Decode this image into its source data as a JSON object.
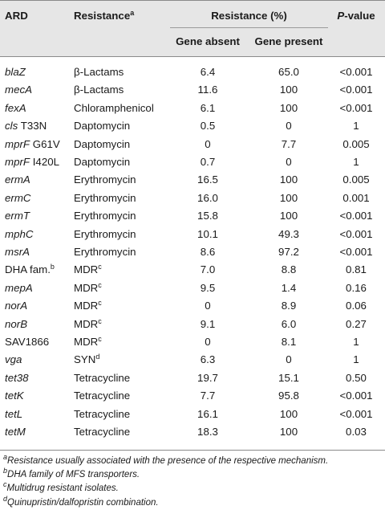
{
  "header": {
    "ard": "ARD",
    "resistance": "Resistance",
    "resistance_sup": "a",
    "resistance_pct": "Resistance (%)",
    "gene_absent": "Gene absent",
    "gene_present": "Gene present",
    "pvalue_p": "P",
    "pvalue_rest": "-value"
  },
  "rows": [
    {
      "gene": "blaZ",
      "gene_italic": true,
      "gene_extra": "",
      "gene_sup": "",
      "resistance": "β-Lactams",
      "res_sup": "",
      "absent": "6.4",
      "present": "65.0",
      "p": "<0.001"
    },
    {
      "gene": "mecA",
      "gene_italic": true,
      "gene_extra": "",
      "gene_sup": "",
      "resistance": "β-Lactams",
      "res_sup": "",
      "absent": "11.6",
      "present": "100",
      "p": "<0.001"
    },
    {
      "gene": "fexA",
      "gene_italic": true,
      "gene_extra": "",
      "gene_sup": "",
      "resistance": "Chloramphenicol",
      "res_sup": "",
      "absent": "6.1",
      "present": "100",
      "p": "<0.001"
    },
    {
      "gene": "cls",
      "gene_italic": true,
      "gene_extra": " T33N",
      "gene_sup": "",
      "resistance": "Daptomycin",
      "res_sup": "",
      "absent": "0.5",
      "present": "0",
      "p": "1"
    },
    {
      "gene": "mprF",
      "gene_italic": true,
      "gene_extra": " G61V",
      "gene_sup": "",
      "resistance": "Daptomycin",
      "res_sup": "",
      "absent": "0",
      "present": "7.7",
      "p": "0.005"
    },
    {
      "gene": "mprF",
      "gene_italic": true,
      "gene_extra": " I420L",
      "gene_sup": "",
      "resistance": "Daptomycin",
      "res_sup": "",
      "absent": "0.7",
      "present": "0",
      "p": "1"
    },
    {
      "gene": "ermA",
      "gene_italic": true,
      "gene_extra": "",
      "gene_sup": "",
      "resistance": "Erythromycin",
      "res_sup": "",
      "absent": "16.5",
      "present": "100",
      "p": "0.005"
    },
    {
      "gene": "ermC",
      "gene_italic": true,
      "gene_extra": "",
      "gene_sup": "",
      "resistance": "Erythromycin",
      "res_sup": "",
      "absent": "16.0",
      "present": "100",
      "p": "0.001"
    },
    {
      "gene": "ermT",
      "gene_italic": true,
      "gene_extra": "",
      "gene_sup": "",
      "resistance": "Erythromycin",
      "res_sup": "",
      "absent": "15.8",
      "present": "100",
      "p": "<0.001"
    },
    {
      "gene": "mphC",
      "gene_italic": true,
      "gene_extra": "",
      "gene_sup": "",
      "resistance": "Erythromycin",
      "res_sup": "",
      "absent": "10.1",
      "present": "49.3",
      "p": "<0.001"
    },
    {
      "gene": "msrA",
      "gene_italic": true,
      "gene_extra": "",
      "gene_sup": "",
      "resistance": "Erythromycin",
      "res_sup": "",
      "absent": "8.6",
      "present": "97.2",
      "p": "<0.001"
    },
    {
      "gene": "DHA fam.",
      "gene_italic": false,
      "gene_extra": "",
      "gene_sup": "b",
      "resistance": "MDR",
      "res_sup": "c",
      "absent": "7.0",
      "present": "8.8",
      "p": "0.81"
    },
    {
      "gene": "mepA",
      "gene_italic": true,
      "gene_extra": "",
      "gene_sup": "",
      "resistance": "MDR",
      "res_sup": "c",
      "absent": "9.5",
      "present": "1.4",
      "p": "0.16"
    },
    {
      "gene": "norA",
      "gene_italic": true,
      "gene_extra": "",
      "gene_sup": "",
      "resistance": "MDR",
      "res_sup": "c",
      "absent": "0",
      "present": "8.9",
      "p": "0.06"
    },
    {
      "gene": "norB",
      "gene_italic": true,
      "gene_extra": "",
      "gene_sup": "",
      "resistance": "MDR",
      "res_sup": "c",
      "absent": "9.1",
      "present": "6.0",
      "p": "0.27"
    },
    {
      "gene": "SAV1866",
      "gene_italic": false,
      "gene_extra": "",
      "gene_sup": "",
      "resistance": "MDR",
      "res_sup": "c",
      "absent": "0",
      "present": "8.1",
      "p": "1"
    },
    {
      "gene": "vga",
      "gene_italic": true,
      "gene_extra": "",
      "gene_sup": "",
      "resistance": "SYN",
      "res_sup": "d",
      "absent": "6.3",
      "present": "0",
      "p": "1"
    },
    {
      "gene": "tet38",
      "gene_italic": true,
      "gene_extra": "",
      "gene_sup": "",
      "resistance": "Tetracycline",
      "res_sup": "",
      "absent": "19.7",
      "present": "15.1",
      "p": "0.50"
    },
    {
      "gene": "tetK",
      "gene_italic": true,
      "gene_extra": "",
      "gene_sup": "",
      "resistance": "Tetracycline",
      "res_sup": "",
      "absent": "7.7",
      "present": "95.8",
      "p": "<0.001"
    },
    {
      "gene": "tetL",
      "gene_italic": true,
      "gene_extra": "",
      "gene_sup": "",
      "resistance": "Tetracycline",
      "res_sup": "",
      "absent": "16.1",
      "present": "100",
      "p": "<0.001"
    },
    {
      "gene": "tetM",
      "gene_italic": true,
      "gene_extra": "",
      "gene_sup": "",
      "resistance": "Tetracycline",
      "res_sup": "",
      "absent": "18.3",
      "present": "100",
      "p": "0.03"
    }
  ],
  "footnotes": [
    {
      "mark": "a",
      "text": "Resistance usually associated with the presence of the respective mechanism."
    },
    {
      "mark": "b",
      "text": "DHA family of MFS transporters."
    },
    {
      "mark": "c",
      "text": "Multidrug resistant isolates."
    },
    {
      "mark": "d",
      "text": "Quinupristin/dalfopristin combination."
    }
  ],
  "colors": {
    "header_bg": "#e6e6e6",
    "rule": "#8a8a8a"
  }
}
